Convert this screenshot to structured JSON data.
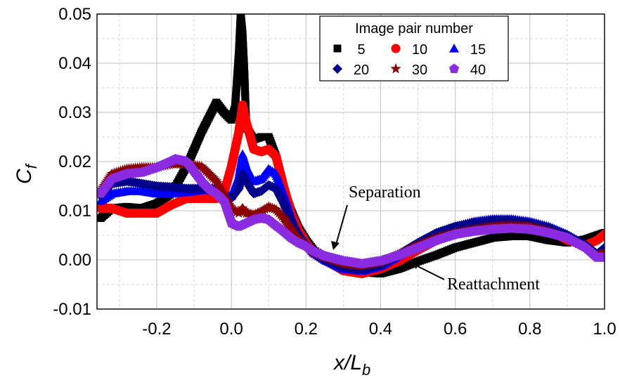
{
  "chart_data": {
    "type": "scatter",
    "xlabel_main": "x/L",
    "xlabel_sub": "b",
    "ylabel_main": "C",
    "ylabel_sub": "f",
    "xlim": [
      -0.36,
      1.0
    ],
    "ylim": [
      -0.01,
      0.05
    ],
    "x_ticks": [
      -0.2,
      0.0,
      0.2,
      0.4,
      0.6,
      0.8,
      1.0
    ],
    "x_tick_labels": [
      "-0.2",
      "0.0",
      "0.2",
      "0.4",
      "0.6",
      "0.8",
      "1.0"
    ],
    "y_ticks": [
      -0.01,
      0.0,
      0.01,
      0.02,
      0.03,
      0.04,
      0.05
    ],
    "y_tick_labels": [
      "-0.01",
      "0.00",
      "0.01",
      "0.02",
      "0.03",
      "0.04",
      "0.05"
    ],
    "grid": true,
    "legend": {
      "title": "Image pair number",
      "placement": "top-right"
    },
    "series": [
      {
        "name": "5",
        "color": "#000000",
        "marker": "square",
        "x": [
          -0.35,
          -0.32,
          -0.28,
          -0.24,
          -0.2,
          -0.16,
          -0.12,
          -0.1,
          -0.08,
          -0.06,
          -0.04,
          -0.02,
          0.0,
          0.01,
          0.02,
          0.025,
          0.03,
          0.035,
          0.04,
          0.06,
          0.08,
          0.1,
          0.12,
          0.14,
          0.16,
          0.18,
          0.2,
          0.22,
          0.25,
          0.3,
          0.35,
          0.4,
          0.45,
          0.5,
          0.55,
          0.6,
          0.65,
          0.7,
          0.75,
          0.8,
          0.85,
          0.9,
          0.95,
          0.98,
          1.0
        ],
        "y": [
          0.0085,
          0.0105,
          0.0108,
          0.0105,
          0.0115,
          0.0135,
          0.019,
          0.0225,
          0.026,
          0.029,
          0.032,
          0.03,
          0.0285,
          0.031,
          0.042,
          0.05,
          0.046,
          0.038,
          0.027,
          0.0245,
          0.025,
          0.025,
          0.021,
          0.0145,
          0.01,
          0.0065,
          0.004,
          0.002,
          0.0005,
          -0.0015,
          -0.0025,
          -0.0028,
          -0.0018,
          -0.0003,
          0.001,
          0.0025,
          0.0035,
          0.0045,
          0.0048,
          0.0048,
          0.004,
          0.0035,
          0.0042,
          0.005,
          0.0055
        ]
      },
      {
        "name": "10",
        "color": "#ff0000",
        "marker": "circle",
        "x": [
          -0.35,
          -0.32,
          -0.28,
          -0.24,
          -0.2,
          -0.16,
          -0.12,
          -0.08,
          -0.04,
          -0.02,
          0.0,
          0.02,
          0.03,
          0.04,
          0.06,
          0.08,
          0.1,
          0.12,
          0.14,
          0.16,
          0.18,
          0.2,
          0.22,
          0.25,
          0.3,
          0.35,
          0.4,
          0.45,
          0.5,
          0.55,
          0.6,
          0.65,
          0.7,
          0.75,
          0.8,
          0.85,
          0.9,
          0.95,
          0.98,
          1.0
        ],
        "y": [
          0.0105,
          0.0105,
          0.0095,
          0.0095,
          0.0095,
          0.0112,
          0.0125,
          0.0125,
          0.0125,
          0.0135,
          0.019,
          0.026,
          0.0315,
          0.028,
          0.0225,
          0.022,
          0.0225,
          0.021,
          0.015,
          0.0095,
          0.006,
          0.0035,
          0.0015,
          0.0,
          -0.0022,
          -0.0028,
          -0.0018,
          -0.0002,
          0.002,
          0.004,
          0.0055,
          0.0065,
          0.007,
          0.0075,
          0.0073,
          0.0062,
          0.004,
          0.003,
          0.004,
          0.0052
        ]
      },
      {
        "name": "15",
        "color": "#0000ff",
        "marker": "triangle",
        "x": [
          -0.35,
          -0.32,
          -0.28,
          -0.24,
          -0.2,
          -0.16,
          -0.12,
          -0.08,
          -0.04,
          -0.02,
          0.0,
          0.02,
          0.03,
          0.04,
          0.06,
          0.08,
          0.1,
          0.12,
          0.14,
          0.16,
          0.18,
          0.2,
          0.22,
          0.25,
          0.3,
          0.35,
          0.4,
          0.45,
          0.5,
          0.55,
          0.6,
          0.65,
          0.7,
          0.75,
          0.8,
          0.85,
          0.9,
          0.95,
          0.98,
          1.0
        ],
        "y": [
          0.012,
          0.0135,
          0.014,
          0.014,
          0.0135,
          0.0135,
          0.0138,
          0.0142,
          0.0142,
          0.013,
          0.013,
          0.017,
          0.0215,
          0.019,
          0.016,
          0.0165,
          0.0185,
          0.0175,
          0.0135,
          0.009,
          0.0055,
          0.0035,
          0.0015,
          0.0,
          -0.0018,
          -0.0022,
          -0.0012,
          0.001,
          0.0035,
          0.0055,
          0.0068,
          0.0078,
          0.0083,
          0.0083,
          0.0078,
          0.0068,
          0.0052,
          0.003,
          0.0012,
          0.0018
        ]
      },
      {
        "name": "20",
        "color": "#00008b",
        "marker": "diamond",
        "x": [
          -0.35,
          -0.32,
          -0.28,
          -0.24,
          -0.2,
          -0.16,
          -0.12,
          -0.08,
          -0.04,
          -0.02,
          0.0,
          0.02,
          0.03,
          0.04,
          0.06,
          0.08,
          0.1,
          0.12,
          0.14,
          0.16,
          0.18,
          0.2,
          0.22,
          0.25,
          0.3,
          0.35,
          0.4,
          0.45,
          0.5,
          0.55,
          0.6,
          0.65,
          0.7,
          0.75,
          0.8,
          0.85,
          0.9,
          0.95,
          0.98,
          1.0
        ],
        "y": [
          0.013,
          0.0155,
          0.016,
          0.0155,
          0.015,
          0.0148,
          0.0145,
          0.0145,
          0.0145,
          0.013,
          0.0125,
          0.0145,
          0.0175,
          0.016,
          0.0135,
          0.014,
          0.0152,
          0.0145,
          0.0115,
          0.008,
          0.005,
          0.0032,
          0.0015,
          0.0,
          -0.0015,
          -0.002,
          -0.001,
          0.0012,
          0.0035,
          0.0055,
          0.0068,
          0.0075,
          0.008,
          0.008,
          0.0075,
          0.0065,
          0.005,
          0.003,
          0.0012,
          0.0025
        ]
      },
      {
        "name": "30",
        "color": "#8b0000",
        "marker": "star",
        "x": [
          -0.35,
          -0.32,
          -0.28,
          -0.24,
          -0.2,
          -0.16,
          -0.12,
          -0.08,
          -0.04,
          -0.02,
          0.0,
          0.02,
          0.03,
          0.04,
          0.06,
          0.08,
          0.1,
          0.12,
          0.14,
          0.16,
          0.18,
          0.2,
          0.22,
          0.25,
          0.3,
          0.35,
          0.4,
          0.45,
          0.5,
          0.55,
          0.6,
          0.65,
          0.7,
          0.75,
          0.8,
          0.85,
          0.9,
          0.95,
          0.98,
          1.0
        ],
        "y": [
          0.014,
          0.0175,
          0.0185,
          0.0188,
          0.0188,
          0.0195,
          0.0195,
          0.019,
          0.016,
          0.013,
          0.0105,
          0.0095,
          0.0105,
          0.0095,
          0.0092,
          0.0098,
          0.0108,
          0.0102,
          0.0085,
          0.0062,
          0.0042,
          0.003,
          0.0015,
          0.0005,
          -0.0008,
          -0.0012,
          -0.0005,
          0.0012,
          0.003,
          0.0045,
          0.0055,
          0.0062,
          0.0068,
          0.007,
          0.0068,
          0.0058,
          0.0045,
          0.0025,
          0.0008,
          0.0015
        ]
      },
      {
        "name": "40",
        "color": "#8a2be2",
        "marker": "pentagon",
        "x": [
          -0.35,
          -0.32,
          -0.28,
          -0.24,
          -0.2,
          -0.17,
          -0.15,
          -0.12,
          -0.1,
          -0.08,
          -0.06,
          -0.04,
          -0.02,
          0.0,
          0.02,
          0.04,
          0.06,
          0.08,
          0.1,
          0.12,
          0.14,
          0.16,
          0.18,
          0.2,
          0.22,
          0.25,
          0.3,
          0.35,
          0.4,
          0.45,
          0.5,
          0.55,
          0.6,
          0.65,
          0.7,
          0.75,
          0.8,
          0.85,
          0.9,
          0.95,
          0.98,
          1.0
        ],
        "y": [
          0.0135,
          0.0165,
          0.0175,
          0.0178,
          0.0188,
          0.0198,
          0.0205,
          0.02,
          0.018,
          0.016,
          0.0145,
          0.0135,
          0.012,
          0.0075,
          0.0068,
          0.0075,
          0.0082,
          0.0085,
          0.0082,
          0.007,
          0.0058,
          0.0045,
          0.0035,
          0.0028,
          0.0018,
          0.0008,
          -0.0002,
          -0.0008,
          -0.0002,
          0.001,
          0.0025,
          0.004,
          0.0052,
          0.0058,
          0.0062,
          0.0064,
          0.0062,
          0.0055,
          0.0045,
          0.0025,
          0.0005,
          0.0005
        ]
      }
    ],
    "annotations": [
      {
        "text": "Separation",
        "points_to": [
          0.27,
          0.0025
        ]
      },
      {
        "text": "Reattachment",
        "points_to": [
          0.46,
          -0.0005
        ]
      }
    ]
  }
}
